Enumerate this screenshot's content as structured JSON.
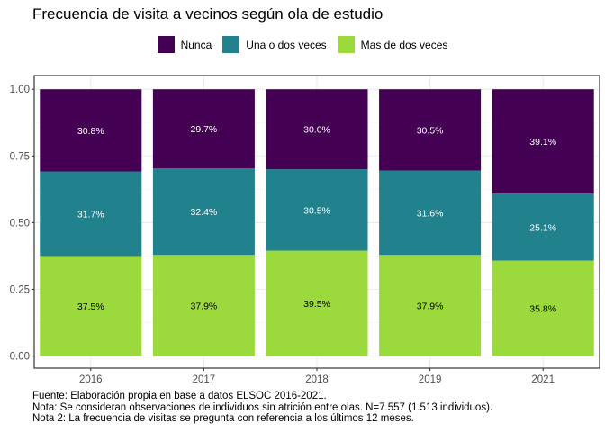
{
  "title": "Frecuencia de visita a vecinos según ola de estudio",
  "caption": [
    "Fuente: Elaboración propia en base a datos ELSOC 2016-2021.",
    "Nota: Se consideran observaciones de individuos sin atrición entre olas. N=7.557 (1.513 individuos).",
    "Nota 2: La frecuencia de visitas se pregunta con referencia a los últimos 12 meses."
  ],
  "legend": [
    {
      "label": "Nunca",
      "color": "#440154"
    },
    {
      "label": "Una o dos veces",
      "color": "#21818c"
    },
    {
      "label": "Mas de dos veces",
      "color": "#9bd93c"
    }
  ],
  "chart_data": {
    "type": "bar",
    "stacked": true,
    "title": "Frecuencia de visita a vecinos según ola de estudio",
    "xlabel": "",
    "ylabel": "",
    "ylim": [
      0,
      1
    ],
    "y_ticks": [
      "0.00",
      "0.25",
      "0.50",
      "0.75",
      "1.00"
    ],
    "categories": [
      "2016",
      "2017",
      "2018",
      "2019",
      "2021"
    ],
    "series": [
      {
        "name": "Mas de dos veces",
        "color": "#9bd93c",
        "label_color": "#000000",
        "values": [
          0.375,
          0.379,
          0.395,
          0.379,
          0.358
        ],
        "labels": [
          "37.5%",
          "37.9%",
          "39.5%",
          "37.9%",
          "35.8%"
        ]
      },
      {
        "name": "Una o dos veces",
        "color": "#21818c",
        "label_color": "#ffffff",
        "values": [
          0.317,
          0.324,
          0.305,
          0.316,
          0.251
        ],
        "labels": [
          "31.7%",
          "32.4%",
          "30.5%",
          "31.6%",
          "25.1%"
        ]
      },
      {
        "name": "Nunca",
        "color": "#440154",
        "label_color": "#ffffff",
        "values": [
          0.308,
          0.297,
          0.3,
          0.305,
          0.391
        ],
        "labels": [
          "30.8%",
          "29.7%",
          "30.0%",
          "30.5%",
          "39.1%"
        ]
      }
    ],
    "legend_position": "top",
    "grid": true
  }
}
